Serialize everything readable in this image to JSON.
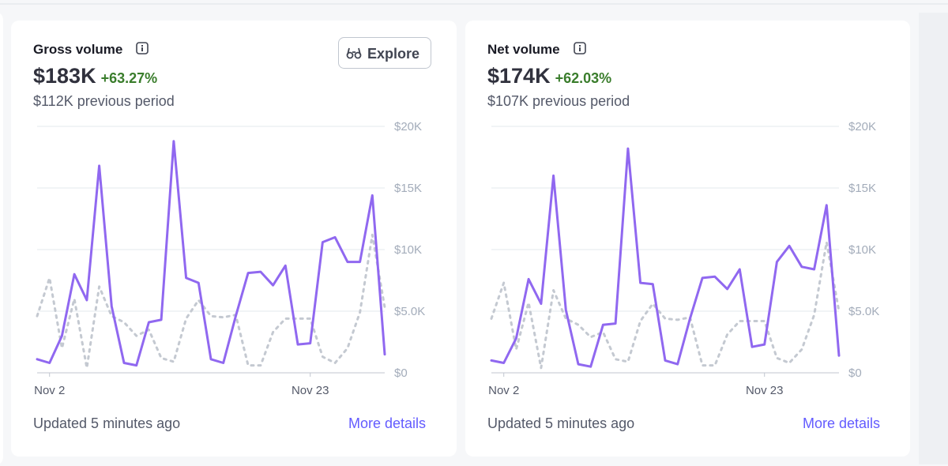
{
  "cards": [
    {
      "title": "Gross volume",
      "value": "$183K",
      "change": "+63.27%",
      "previous": "$112K previous period",
      "button": "Explore",
      "updated": "Updated 5 minutes ago",
      "link": "More details",
      "chart": {
        "type": "line",
        "categories": [
          null,
          "Nov 2",
          null,
          null,
          null,
          null,
          null,
          null,
          null,
          null,
          null,
          null,
          null,
          null,
          null,
          null,
          null,
          null,
          null,
          null,
          null,
          null,
          "Nov 23",
          null,
          null,
          null,
          null,
          null,
          null
        ],
        "series": [
          {
            "color": "#9068f0",
            "dashed": false,
            "values": [
              1100,
              800,
              3000,
              8000,
              5900,
              16800,
              5400,
              800,
              600,
              4100,
              4300,
              18800,
              7700,
              7300,
              1100,
              800,
              4600,
              8100,
              8200,
              7100,
              8700,
              2300,
              2400,
              10600,
              11000,
              9000,
              9000,
              14400,
              1500
            ]
          },
          {
            "color": "#c4c9d1",
            "dashed": true,
            "values": [
              4600,
              7700,
              2000,
              6000,
              400,
              7000,
              4600,
              4100,
              3000,
              3500,
              1200,
              900,
              4400,
              5900,
              4600,
              4500,
              4700,
              600,
              600,
              3300,
              4400,
              4400,
              4400,
              1300,
              800,
              2000,
              4900,
              11200,
              5300
            ]
          }
        ],
        "ylim": [
          0,
          20000
        ],
        "yticks": [
          {
            "value": 0,
            "label": "$0"
          },
          {
            "value": 5000,
            "label": "$5.0K"
          },
          {
            "value": 10000,
            "label": "$10K"
          },
          {
            "value": 15000,
            "label": "$15K"
          },
          {
            "value": 20000,
            "label": "$20K"
          }
        ],
        "grid": true
      }
    },
    {
      "title": "Net volume",
      "value": "$174K",
      "change": "+62.03%",
      "previous": "$107K previous period",
      "updated": "Updated 5 minutes ago",
      "link": "More details",
      "chart": {
        "type": "line",
        "categories": [
          null,
          "Nov 2",
          null,
          null,
          null,
          null,
          null,
          null,
          null,
          null,
          null,
          null,
          null,
          null,
          null,
          null,
          null,
          null,
          null,
          null,
          null,
          null,
          "Nov 23",
          null,
          null,
          null,
          null,
          null,
          null
        ],
        "series": [
          {
            "color": "#9068f0",
            "dashed": false,
            "values": [
              1000,
              800,
              2800,
              7600,
              5600,
              16000,
              5100,
              700,
              500,
              3900,
              4000,
              18200,
              7300,
              7200,
              1000,
              700,
              4400,
              7700,
              7800,
              6800,
              8400,
              2100,
              2300,
              9000,
              10300,
              8600,
              8400,
              13600,
              1400
            ]
          },
          {
            "color": "#c4c9d1",
            "dashed": true,
            "values": [
              4400,
              7300,
              1900,
              5700,
              400,
              6700,
              4400,
              3900,
              2900,
              3300,
              1100,
              900,
              4200,
              5600,
              4400,
              4300,
              4500,
              600,
              600,
              3100,
              4200,
              4200,
              4200,
              1200,
              800,
              1900,
              4700,
              10600,
              5000
            ]
          }
        ],
        "ylim": [
          0,
          20000
        ],
        "yticks": [
          {
            "value": 0,
            "label": "$0"
          },
          {
            "value": 5000,
            "label": "$5.0K"
          },
          {
            "value": 10000,
            "label": "$10K"
          },
          {
            "value": 15000,
            "label": "$15K"
          },
          {
            "value": 20000,
            "label": "$20K"
          }
        ],
        "grid": true
      }
    }
  ]
}
